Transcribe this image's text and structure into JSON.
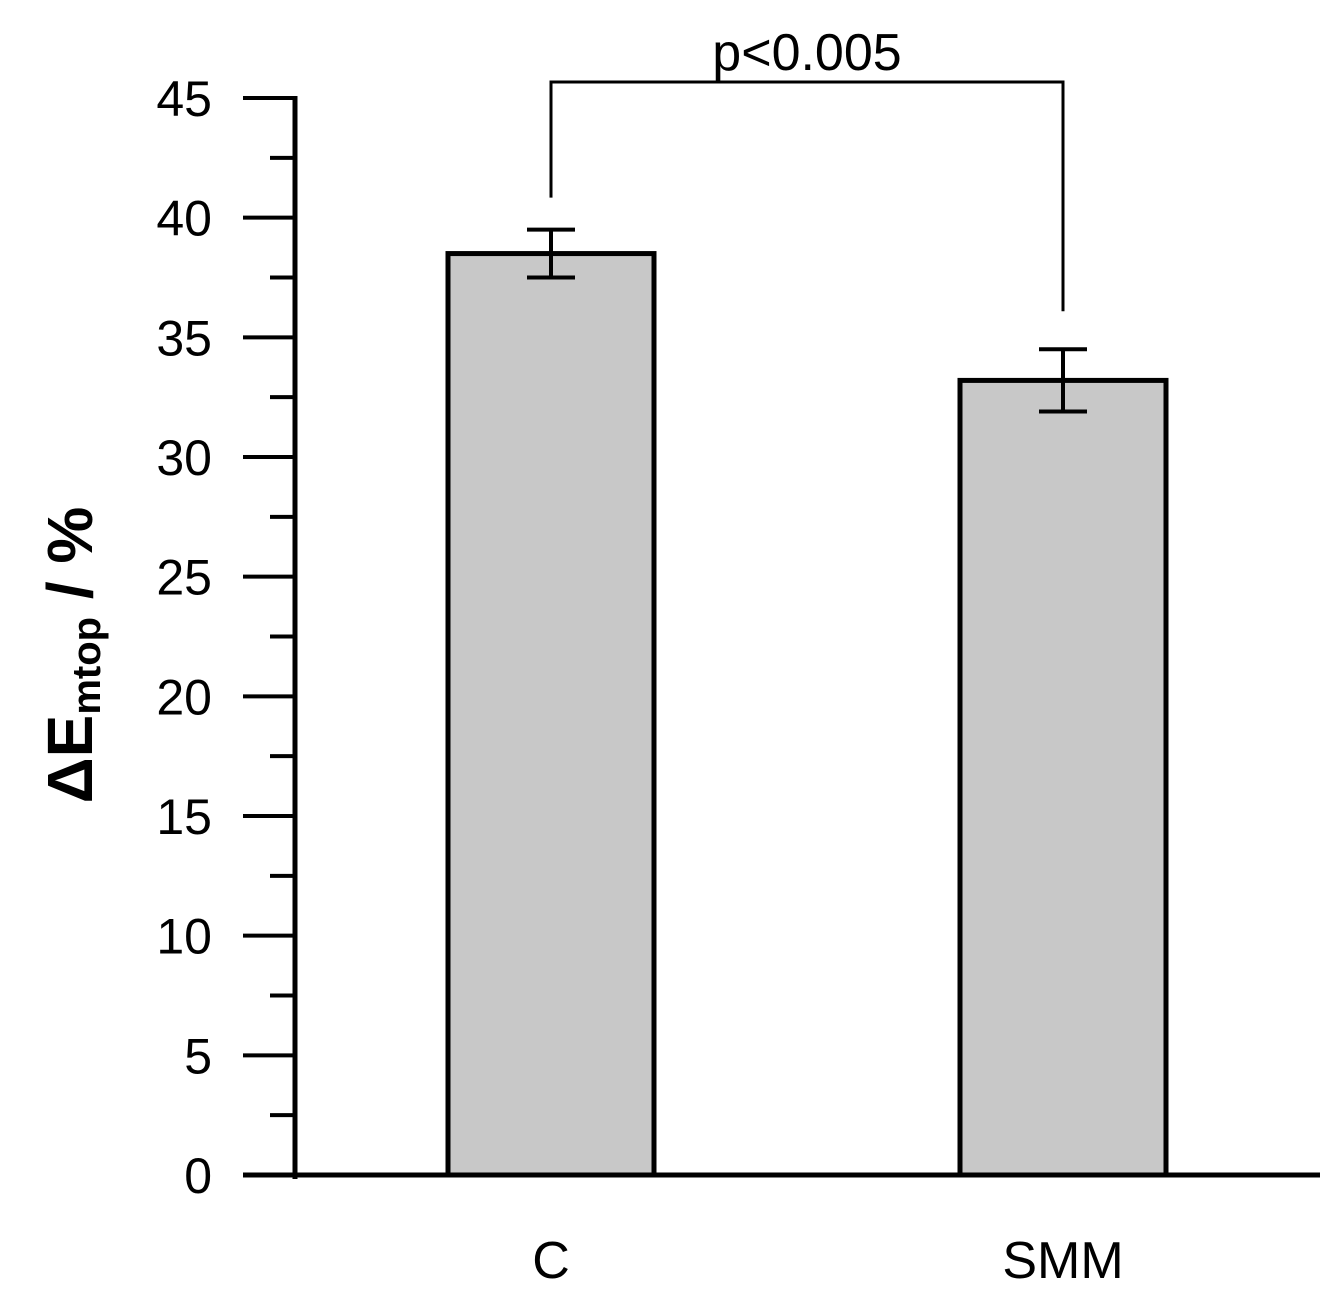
{
  "chart_data": {
    "type": "bar",
    "categories": [
      "C",
      "SMM"
    ],
    "values": [
      38.5,
      33.2
    ],
    "errors": [
      1.0,
      1.3
    ],
    "ylim": [
      0,
      45
    ],
    "ytick_step": 5,
    "yticks": [
      "0",
      "5",
      "10",
      "15",
      "20",
      "25",
      "30",
      "35",
      "40",
      "45"
    ],
    "ylabel": {
      "symbol": "ΔE",
      "subscript": "mtop",
      "suffix": " / %"
    },
    "xlabel": "",
    "title": "",
    "significance": {
      "label": "p<0.005",
      "between": [
        "C",
        "SMM"
      ]
    },
    "bar_color": "#c8c8c8",
    "edge_color": "#000000"
  }
}
